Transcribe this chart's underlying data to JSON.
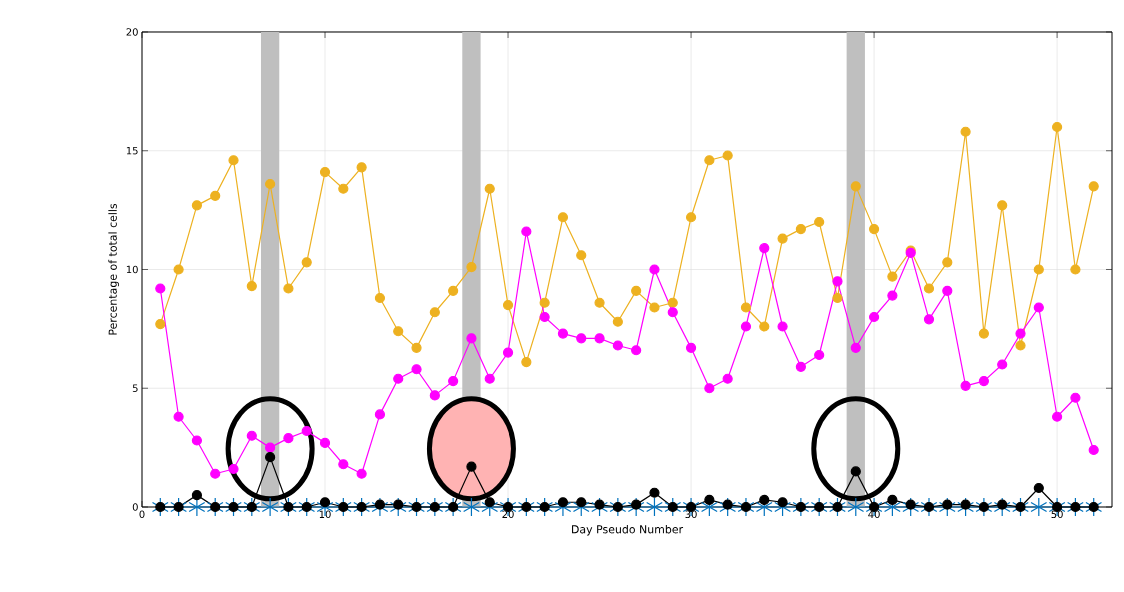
{
  "chart_data": {
    "type": "line",
    "xlabel": "Day Pseudo Number",
    "ylabel": "Percentage of total cells",
    "x": [
      1,
      2,
      3,
      4,
      5,
      6,
      7,
      8,
      9,
      10,
      11,
      12,
      13,
      14,
      15,
      16,
      17,
      18,
      19,
      20,
      21,
      22,
      23,
      24,
      25,
      26,
      27,
      28,
      29,
      30,
      31,
      32,
      33,
      34,
      35,
      36,
      37,
      38,
      39,
      40,
      41,
      42,
      43,
      44,
      45,
      46,
      47,
      48,
      49,
      50,
      51,
      52
    ],
    "series": [
      {
        "color": "#edb120",
        "marker": "circle",
        "values": [
          7.7,
          10.0,
          12.7,
          13.1,
          14.6,
          9.3,
          13.6,
          9.2,
          10.3,
          14.1,
          13.4,
          14.3,
          8.8,
          7.4,
          6.7,
          8.2,
          9.1,
          10.1,
          13.4,
          8.5,
          6.1,
          8.6,
          12.2,
          10.6,
          8.6,
          7.8,
          9.1,
          8.4,
          8.6,
          12.2,
          14.6,
          14.8,
          8.4,
          7.6,
          11.3,
          11.7,
          12.0,
          8.8,
          13.5,
          11.7,
          9.7,
          10.8,
          9.2,
          10.3,
          15.8,
          7.3,
          12.7,
          6.8,
          10.0,
          16.0,
          10.0,
          13.5
        ]
      },
      {
        "color": "#ff00ff",
        "marker": "circle",
        "values": [
          9.2,
          3.8,
          2.8,
          1.4,
          1.6,
          3.0,
          2.5,
          2.9,
          3.2,
          2.7,
          1.8,
          1.4,
          3.9,
          5.4,
          5.8,
          4.7,
          5.3,
          7.1,
          5.4,
          6.5,
          11.6,
          8.0,
          7.3,
          7.1,
          7.1,
          6.8,
          6.6,
          10.0,
          8.2,
          6.7,
          5.0,
          5.4,
          7.6,
          10.9,
          7.6,
          5.9,
          6.4,
          9.5,
          6.7,
          8.0,
          8.9,
          10.7,
          7.9,
          9.1,
          5.1,
          5.3,
          6.0,
          7.3,
          8.4,
          3.8,
          4.6,
          2.4
        ]
      },
      {
        "color": "#0072bd",
        "marker": "cross",
        "values": [
          0,
          0,
          0,
          0,
          0,
          0,
          0,
          0,
          0,
          0,
          0,
          0,
          0,
          0,
          0,
          0,
          0,
          0,
          0,
          0,
          0,
          0,
          0,
          0,
          0,
          0,
          0,
          0,
          0,
          0,
          0,
          0,
          0,
          0,
          0,
          0,
          0,
          0,
          0,
          0,
          0,
          0,
          0,
          0,
          0,
          0,
          0,
          0,
          0,
          0,
          0,
          0
        ]
      },
      {
        "color": "#000000",
        "marker": "circle",
        "values": [
          0,
          0,
          0.5,
          0,
          0,
          0,
          2.1,
          0,
          0,
          0.2,
          0,
          0,
          0.1,
          0.1,
          0,
          0,
          0,
          1.7,
          0.2,
          0,
          0,
          0,
          0.2,
          0.2,
          0.1,
          0,
          0.1,
          0.6,
          0,
          0,
          0.3,
          0.1,
          0,
          0.3,
          0.2,
          0,
          0,
          0,
          1.5,
          0,
          0.3,
          0.1,
          0,
          0.1,
          0.1,
          0,
          0.1,
          0,
          0.8,
          0,
          0,
          0
        ]
      }
    ],
    "xlim": [
      0,
      53
    ],
    "ylim": [
      0,
      20
    ],
    "xticks": [
      0,
      10,
      20,
      30,
      40,
      50
    ],
    "yticks": [
      0,
      5,
      10,
      15,
      20
    ],
    "grid": true,
    "bands": [
      {
        "axis": "x",
        "from": 6.5,
        "to": 7.5,
        "color": "#bfbfbf"
      },
      {
        "axis": "x",
        "from": 17.5,
        "to": 18.5,
        "color": "#bfbfbf"
      },
      {
        "axis": "x",
        "from": 38.5,
        "to": 39.5,
        "color": "#bfbfbf"
      }
    ]
  }
}
